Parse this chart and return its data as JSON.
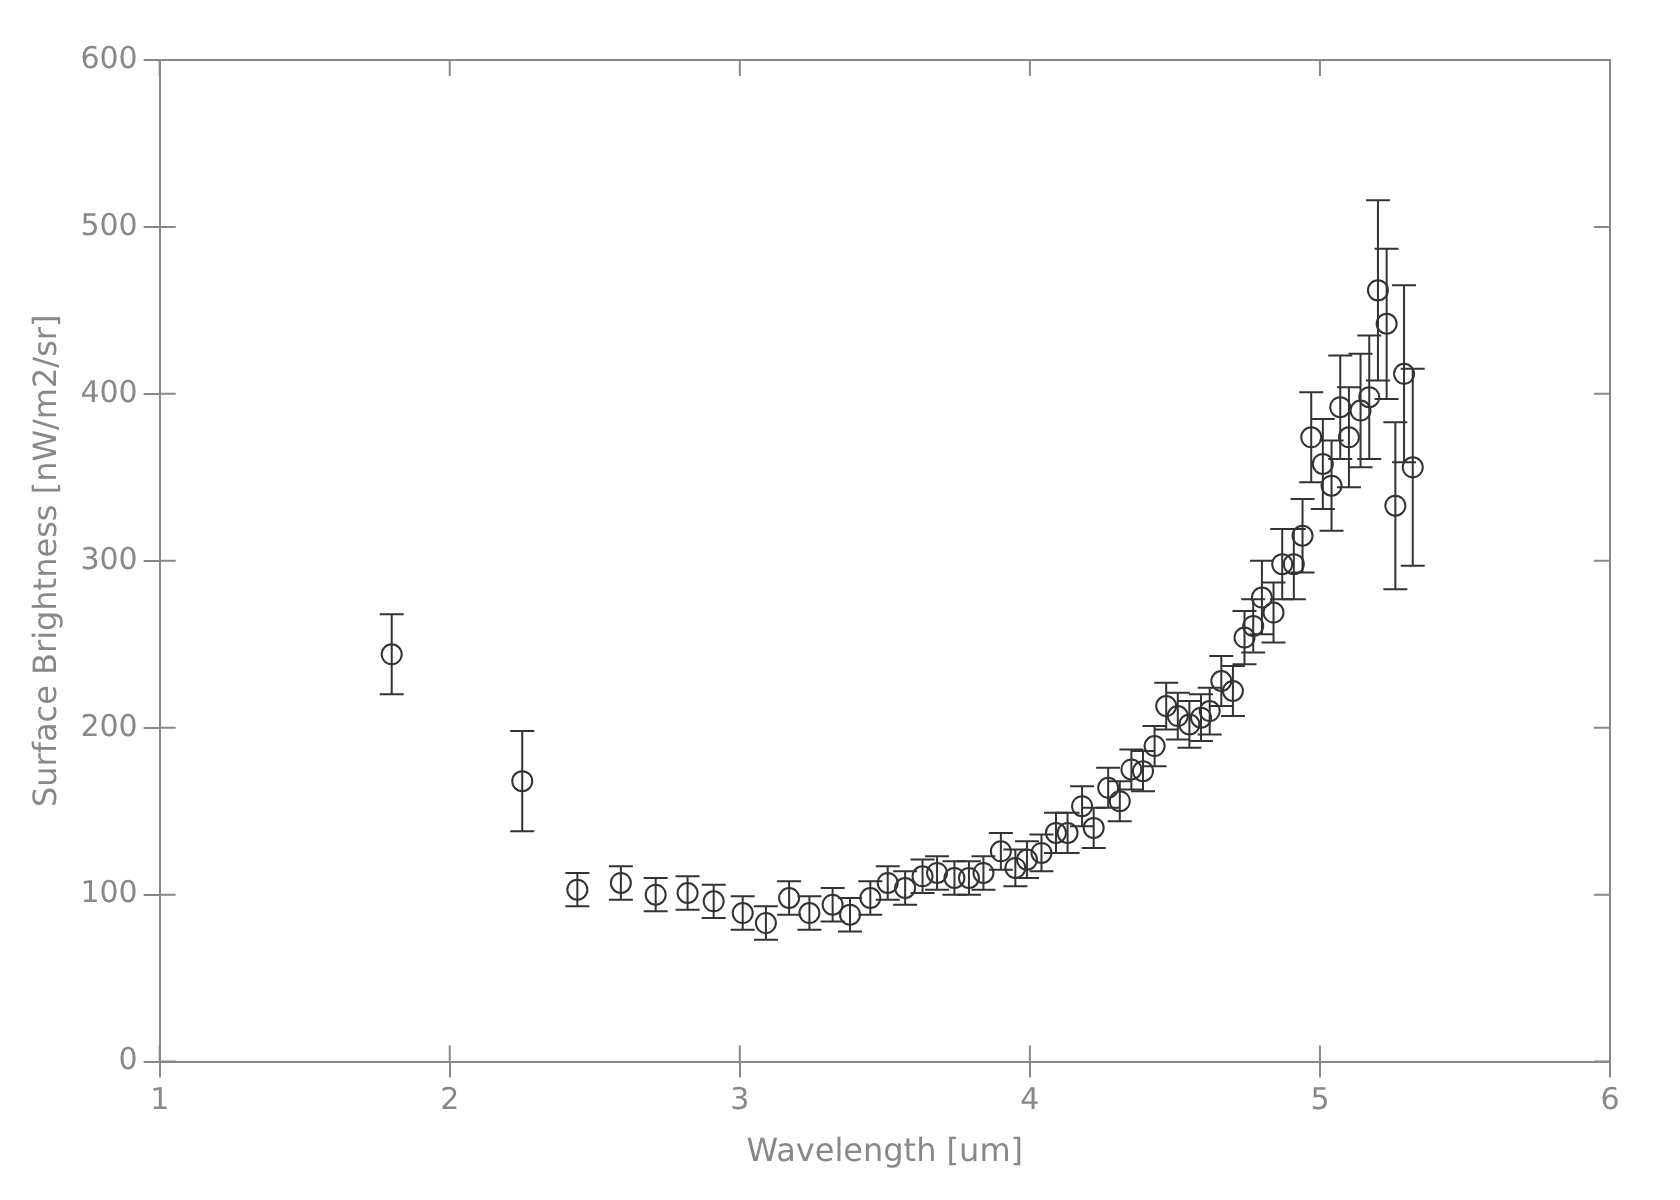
{
  "chart_data": {
    "type": "scatter",
    "xlabel": "Wavelength [um]",
    "ylabel": "Surface Brightness [nW/m2/sr]",
    "xlim": [
      1,
      6
    ],
    "xticks": [
      1,
      2,
      3,
      4,
      5,
      6
    ],
    "ylim": [
      0,
      600
    ],
    "yticks": [
      0,
      100,
      200,
      300,
      400,
      500,
      600
    ],
    "grid": false,
    "legend": false,
    "marker": "circle",
    "series": [
      {
        "color": "#333333",
        "x": [
          1.8,
          2.25,
          2.44,
          2.59,
          2.71,
          2.82,
          2.91,
          3.01,
          3.09,
          3.17,
          3.24,
          3.32,
          3.38,
          3.45,
          3.51,
          3.57,
          3.63,
          3.68,
          3.74,
          3.79,
          3.84,
          3.9,
          3.95,
          3.99,
          4.04,
          4.09,
          4.13,
          4.18,
          4.22,
          4.27,
          4.31,
          4.35,
          4.39,
          4.43,
          4.47,
          4.51,
          4.55,
          4.59,
          4.62,
          4.66,
          4.7,
          4.74,
          4.77,
          4.8,
          4.84,
          4.87,
          4.91,
          4.94,
          4.97,
          5.01,
          5.04,
          5.07,
          5.1,
          5.14,
          5.17,
          5.2,
          5.23,
          5.26,
          5.29,
          5.32
        ],
        "values": [
          244,
          168,
          103,
          107,
          100,
          101,
          96,
          89,
          83,
          98,
          89,
          94,
          88,
          98,
          107,
          104,
          111,
          113,
          110,
          110,
          113,
          126,
          116,
          121,
          125,
          137,
          137,
          153,
          140,
          164,
          156,
          175,
          174,
          189,
          213,
          207,
          202,
          206,
          210,
          228,
          222,
          254,
          261,
          278,
          269,
          298,
          298,
          315,
          374,
          358,
          345,
          392,
          374,
          390,
          398,
          462,
          442,
          333,
          412,
          356
        ],
        "errors": [
          24,
          30,
          10,
          10,
          10,
          10,
          10,
          10,
          10,
          10,
          10,
          10,
          10,
          10,
          10,
          10,
          10,
          10,
          10,
          10,
          10,
          11,
          11,
          11,
          11,
          12,
          12,
          12,
          12,
          12,
          12,
          12,
          12,
          12,
          14,
          14,
          14,
          14,
          14,
          15,
          15,
          16,
          16,
          22,
          18,
          21,
          21,
          22,
          27,
          27,
          27,
          31,
          30,
          34,
          37,
          54,
          45,
          50,
          53,
          59
        ]
      }
    ]
  }
}
